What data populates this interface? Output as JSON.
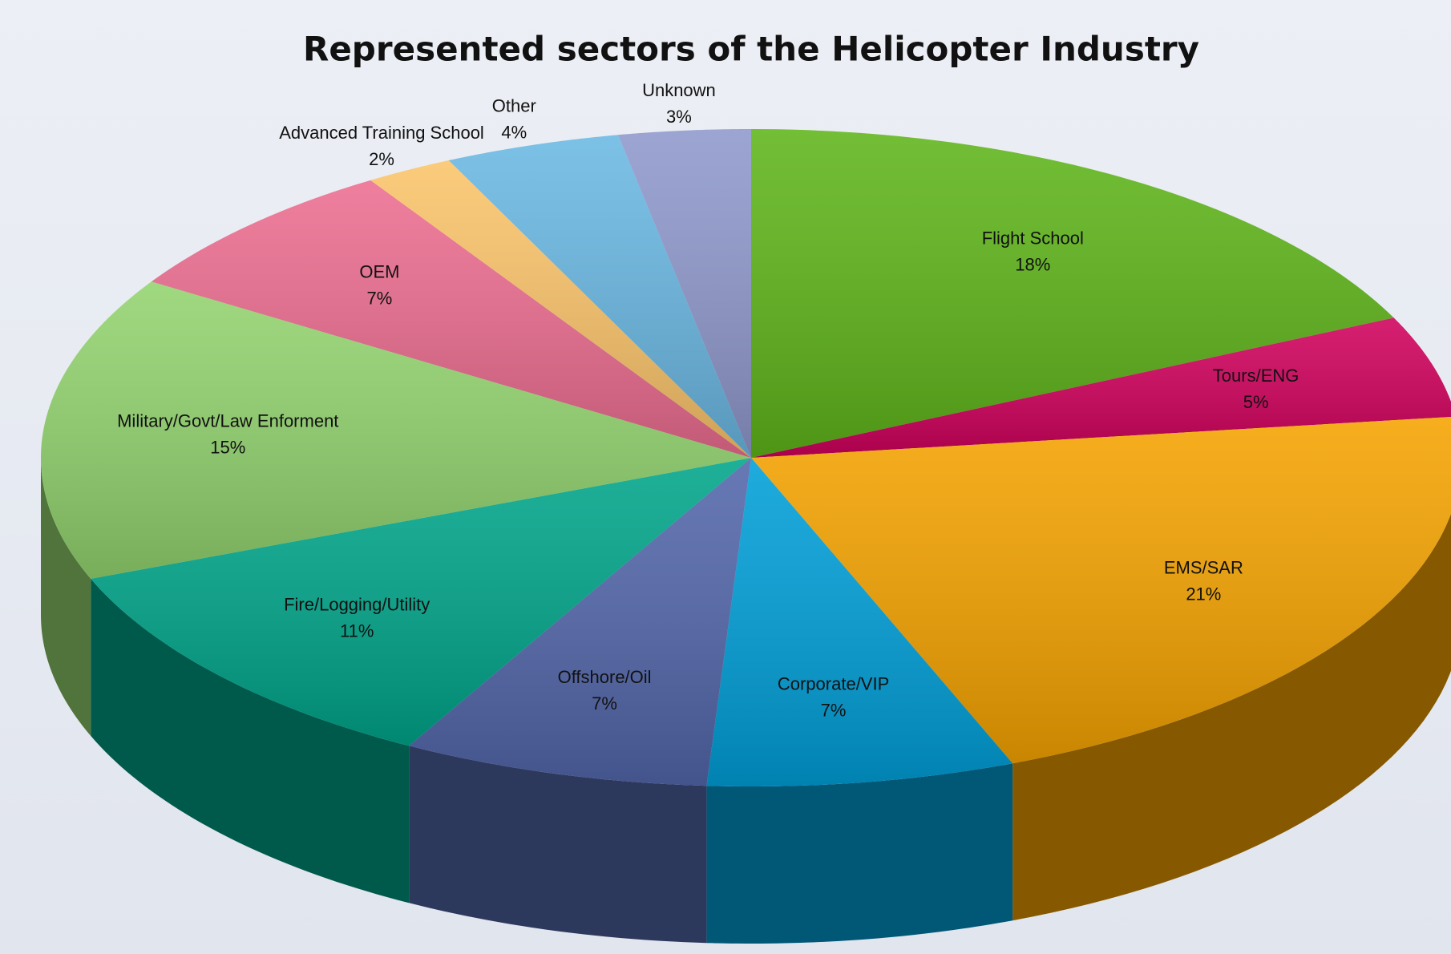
{
  "chart_data": {
    "type": "pie",
    "title": "Represented sectors of the Helicopter Industry",
    "categories": [
      "Flight School",
      "Tours/ENG",
      "EMS/SAR",
      "Corporate/VIP",
      "Offshore/Oil",
      "Fire/Logging/Utility",
      "Military/Govt/Law Enforment",
      "OEM",
      "Advanced Training School",
      "Other",
      "Unknown"
    ],
    "values": [
      18,
      5,
      21,
      7,
      7,
      11,
      15,
      7,
      2,
      4,
      3
    ],
    "value_labels": [
      "18%",
      "5%",
      "21%",
      "7%",
      "7%",
      "11%",
      "15%",
      "7%",
      "2%",
      "4%",
      "3%"
    ],
    "colors": [
      "#5fb51a",
      "#d0005c",
      "#f5a300",
      "#009fd8",
      "#5266aa",
      "#00a58a",
      "#92d36e",
      "#ec6d90",
      "#fbc46a",
      "#6ab8e3",
      "#8f98cc"
    ]
  }
}
